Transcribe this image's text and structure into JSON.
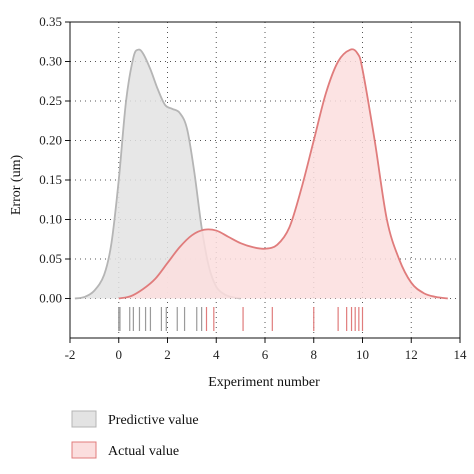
{
  "chart_data": {
    "type": "area",
    "xlabel": "Experiment number",
    "ylabel": "Error (um)",
    "xlim": [
      -2,
      14
    ],
    "ylim": [
      -0.05,
      0.35
    ],
    "x_ticks": [
      -2,
      0,
      2,
      4,
      6,
      8,
      10,
      12,
      14
    ],
    "y_ticks": [
      0.0,
      0.05,
      0.1,
      0.15,
      0.2,
      0.25,
      0.3,
      0.35
    ],
    "y_tick_labels": [
      "0.00",
      "0.05",
      "0.10",
      "0.15",
      "0.20",
      "0.25",
      "0.30",
      "0.35"
    ],
    "grid": "dotted",
    "legend_position": "bottom-left",
    "series": [
      {
        "name": "Predictive value",
        "fill": "#e3e3e3",
        "stroke": "#b5b5b5",
        "rug_color": "#9a9a9a",
        "x": [
          -1.8,
          -1.4,
          -1.0,
          -0.6,
          -0.3,
          0.0,
          0.3,
          0.6,
          0.8,
          1.0,
          1.3,
          1.6,
          1.9,
          2.2,
          2.5,
          2.8,
          3.1,
          3.4,
          3.7,
          4.0,
          4.3,
          4.6,
          5.0
        ],
        "values": [
          0.0,
          0.002,
          0.01,
          0.03,
          0.07,
          0.15,
          0.25,
          0.305,
          0.315,
          0.31,
          0.29,
          0.265,
          0.245,
          0.24,
          0.235,
          0.215,
          0.16,
          0.09,
          0.04,
          0.015,
          0.006,
          0.002,
          0.0
        ],
        "rug": [
          0.0,
          0.05,
          0.45,
          0.6,
          0.85,
          1.1,
          1.3,
          1.75,
          1.95,
          2.4,
          2.7,
          3.2,
          3.4
        ]
      },
      {
        "name": "Actual value",
        "fill": "#fbdede",
        "stroke": "#e07c7c",
        "rug_color": "#e07c7c",
        "x": [
          0.0,
          0.5,
          1.0,
          1.5,
          2.0,
          2.5,
          3.0,
          3.5,
          4.0,
          4.5,
          5.0,
          5.5,
          6.0,
          6.5,
          7.0,
          7.5,
          8.0,
          8.5,
          9.0,
          9.5,
          9.8,
          10.0,
          10.5,
          11.0,
          11.5,
          12.0,
          12.5,
          13.0,
          13.5
        ],
        "values": [
          0.0,
          0.003,
          0.012,
          0.025,
          0.045,
          0.065,
          0.08,
          0.087,
          0.086,
          0.078,
          0.07,
          0.065,
          0.063,
          0.068,
          0.09,
          0.14,
          0.2,
          0.26,
          0.3,
          0.315,
          0.31,
          0.29,
          0.2,
          0.1,
          0.05,
          0.02,
          0.007,
          0.002,
          0.0
        ],
        "rug": [
          3.6,
          3.9,
          5.1,
          6.3,
          8.0,
          9.0,
          9.35,
          9.55,
          9.7,
          9.85,
          10.0
        ]
      }
    ]
  }
}
